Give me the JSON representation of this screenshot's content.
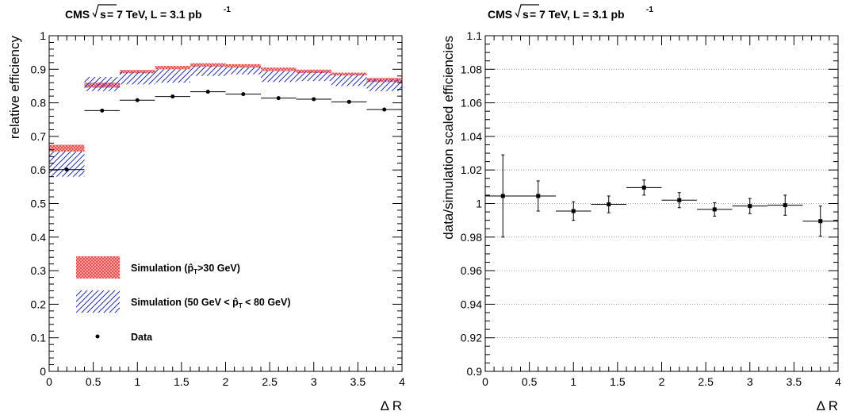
{
  "chart_data": [
    {
      "type": "scatter",
      "header": {
        "experiment": "CMS",
        "energy": "s",
        "energy_tail": " = 7 TeV, L = 3.1 pb",
        "lumi_exp": "-1"
      },
      "xlabel": "Δ R",
      "ylabel": "relative efficiency",
      "xlim": [
        0,
        4
      ],
      "ylim": [
        0,
        1
      ],
      "grid": false,
      "legend_placement": "bottom-left",
      "x_ticks": [
        "0",
        "0.5",
        "1",
        "1.5",
        "2",
        "2.5",
        "3",
        "3.5",
        "4"
      ],
      "y_ticks": [
        "0",
        "0.1",
        "0.2",
        "0.3",
        "0.4",
        "0.5",
        "0.6",
        "0.7",
        "0.8",
        "0.9",
        "1"
      ],
      "bins": [
        0,
        0.4,
        0.8,
        1.2,
        1.6,
        2.0,
        2.4,
        2.8,
        3.2,
        3.6,
        4.0
      ],
      "bands": [
        {
          "name": "sim_high_pt",
          "style": "red-crosshatch",
          "color": "#ff4d4d",
          "low": [
            0.655,
            0.845,
            0.888,
            0.9,
            0.908,
            0.905,
            0.895,
            0.889,
            0.882,
            0.862
          ],
          "high": [
            0.675,
            0.86,
            0.898,
            0.91,
            0.918,
            0.915,
            0.905,
            0.899,
            0.89,
            0.874
          ]
        },
        {
          "name": "sim_mid_pt",
          "style": "blue-hatch",
          "color": "#1f2fcc",
          "low": [
            0.58,
            0.835,
            0.855,
            0.86,
            0.88,
            0.885,
            0.862,
            0.865,
            0.85,
            0.835
          ],
          "high": [
            0.655,
            0.877,
            0.892,
            0.9,
            0.91,
            0.906,
            0.895,
            0.893,
            0.884,
            0.87
          ]
        }
      ],
      "series": [
        {
          "name": "Data",
          "type": "points",
          "color": "#000000",
          "x": [
            0.2,
            0.6,
            1.0,
            1.4,
            1.8,
            2.2,
            2.6,
            3.0,
            3.4,
            3.8
          ],
          "y": [
            0.601,
            0.777,
            0.808,
            0.819,
            0.833,
            0.826,
            0.814,
            0.811,
            0.803,
            0.78
          ],
          "xerr": [
            0.2,
            0.2,
            0.2,
            0.2,
            0.2,
            0.2,
            0.2,
            0.2,
            0.2,
            0.2
          ]
        }
      ],
      "legend": [
        {
          "label": "Simulation (p̂",
          "sub": "T",
          "tail": ">30 GeV)",
          "style": "red-crosshatch"
        },
        {
          "label": "Simulation (50 GeV < p̂",
          "sub": "T",
          "tail": " < 80 GeV)",
          "style": "blue-hatch"
        },
        {
          "label": "Data",
          "sub": "",
          "tail": "",
          "style": "marker"
        }
      ]
    },
    {
      "type": "scatter",
      "header": {
        "experiment": "CMS",
        "energy": "s",
        "energy_tail": " = 7 TeV, L = 3.1 pb",
        "lumi_exp": "-1"
      },
      "xlabel": "Δ R",
      "ylabel": "data/simulation scaled efficiencies",
      "xlim": [
        0,
        4
      ],
      "ylim": [
        0.9,
        1.1
      ],
      "grid": true,
      "x_ticks": [
        "0",
        "0.5",
        "1",
        "1.5",
        "2",
        "2.5",
        "3",
        "3.5",
        "4"
      ],
      "y_ticks": [
        "0.9",
        "0.92",
        "0.94",
        "0.96",
        "0.98",
        "1",
        "1.02",
        "1.04",
        "1.06",
        "1.08",
        "1.1"
      ],
      "series": [
        {
          "name": "ratio",
          "type": "points",
          "color": "#000000",
          "x": [
            0.2,
            0.6,
            1.0,
            1.4,
            1.8,
            2.2,
            2.6,
            3.0,
            3.4,
            3.8
          ],
          "y": [
            1.0045,
            1.0045,
            0.9955,
            0.9995,
            1.0095,
            1.002,
            0.9965,
            0.9985,
            0.999,
            0.9895
          ],
          "xerr": [
            0.2,
            0.2,
            0.2,
            0.2,
            0.2,
            0.2,
            0.2,
            0.2,
            0.2,
            0.2
          ],
          "yerr": [
            0.0245,
            0.009,
            0.0055,
            0.005,
            0.0045,
            0.0045,
            0.004,
            0.0045,
            0.006,
            0.009
          ]
        }
      ]
    }
  ]
}
